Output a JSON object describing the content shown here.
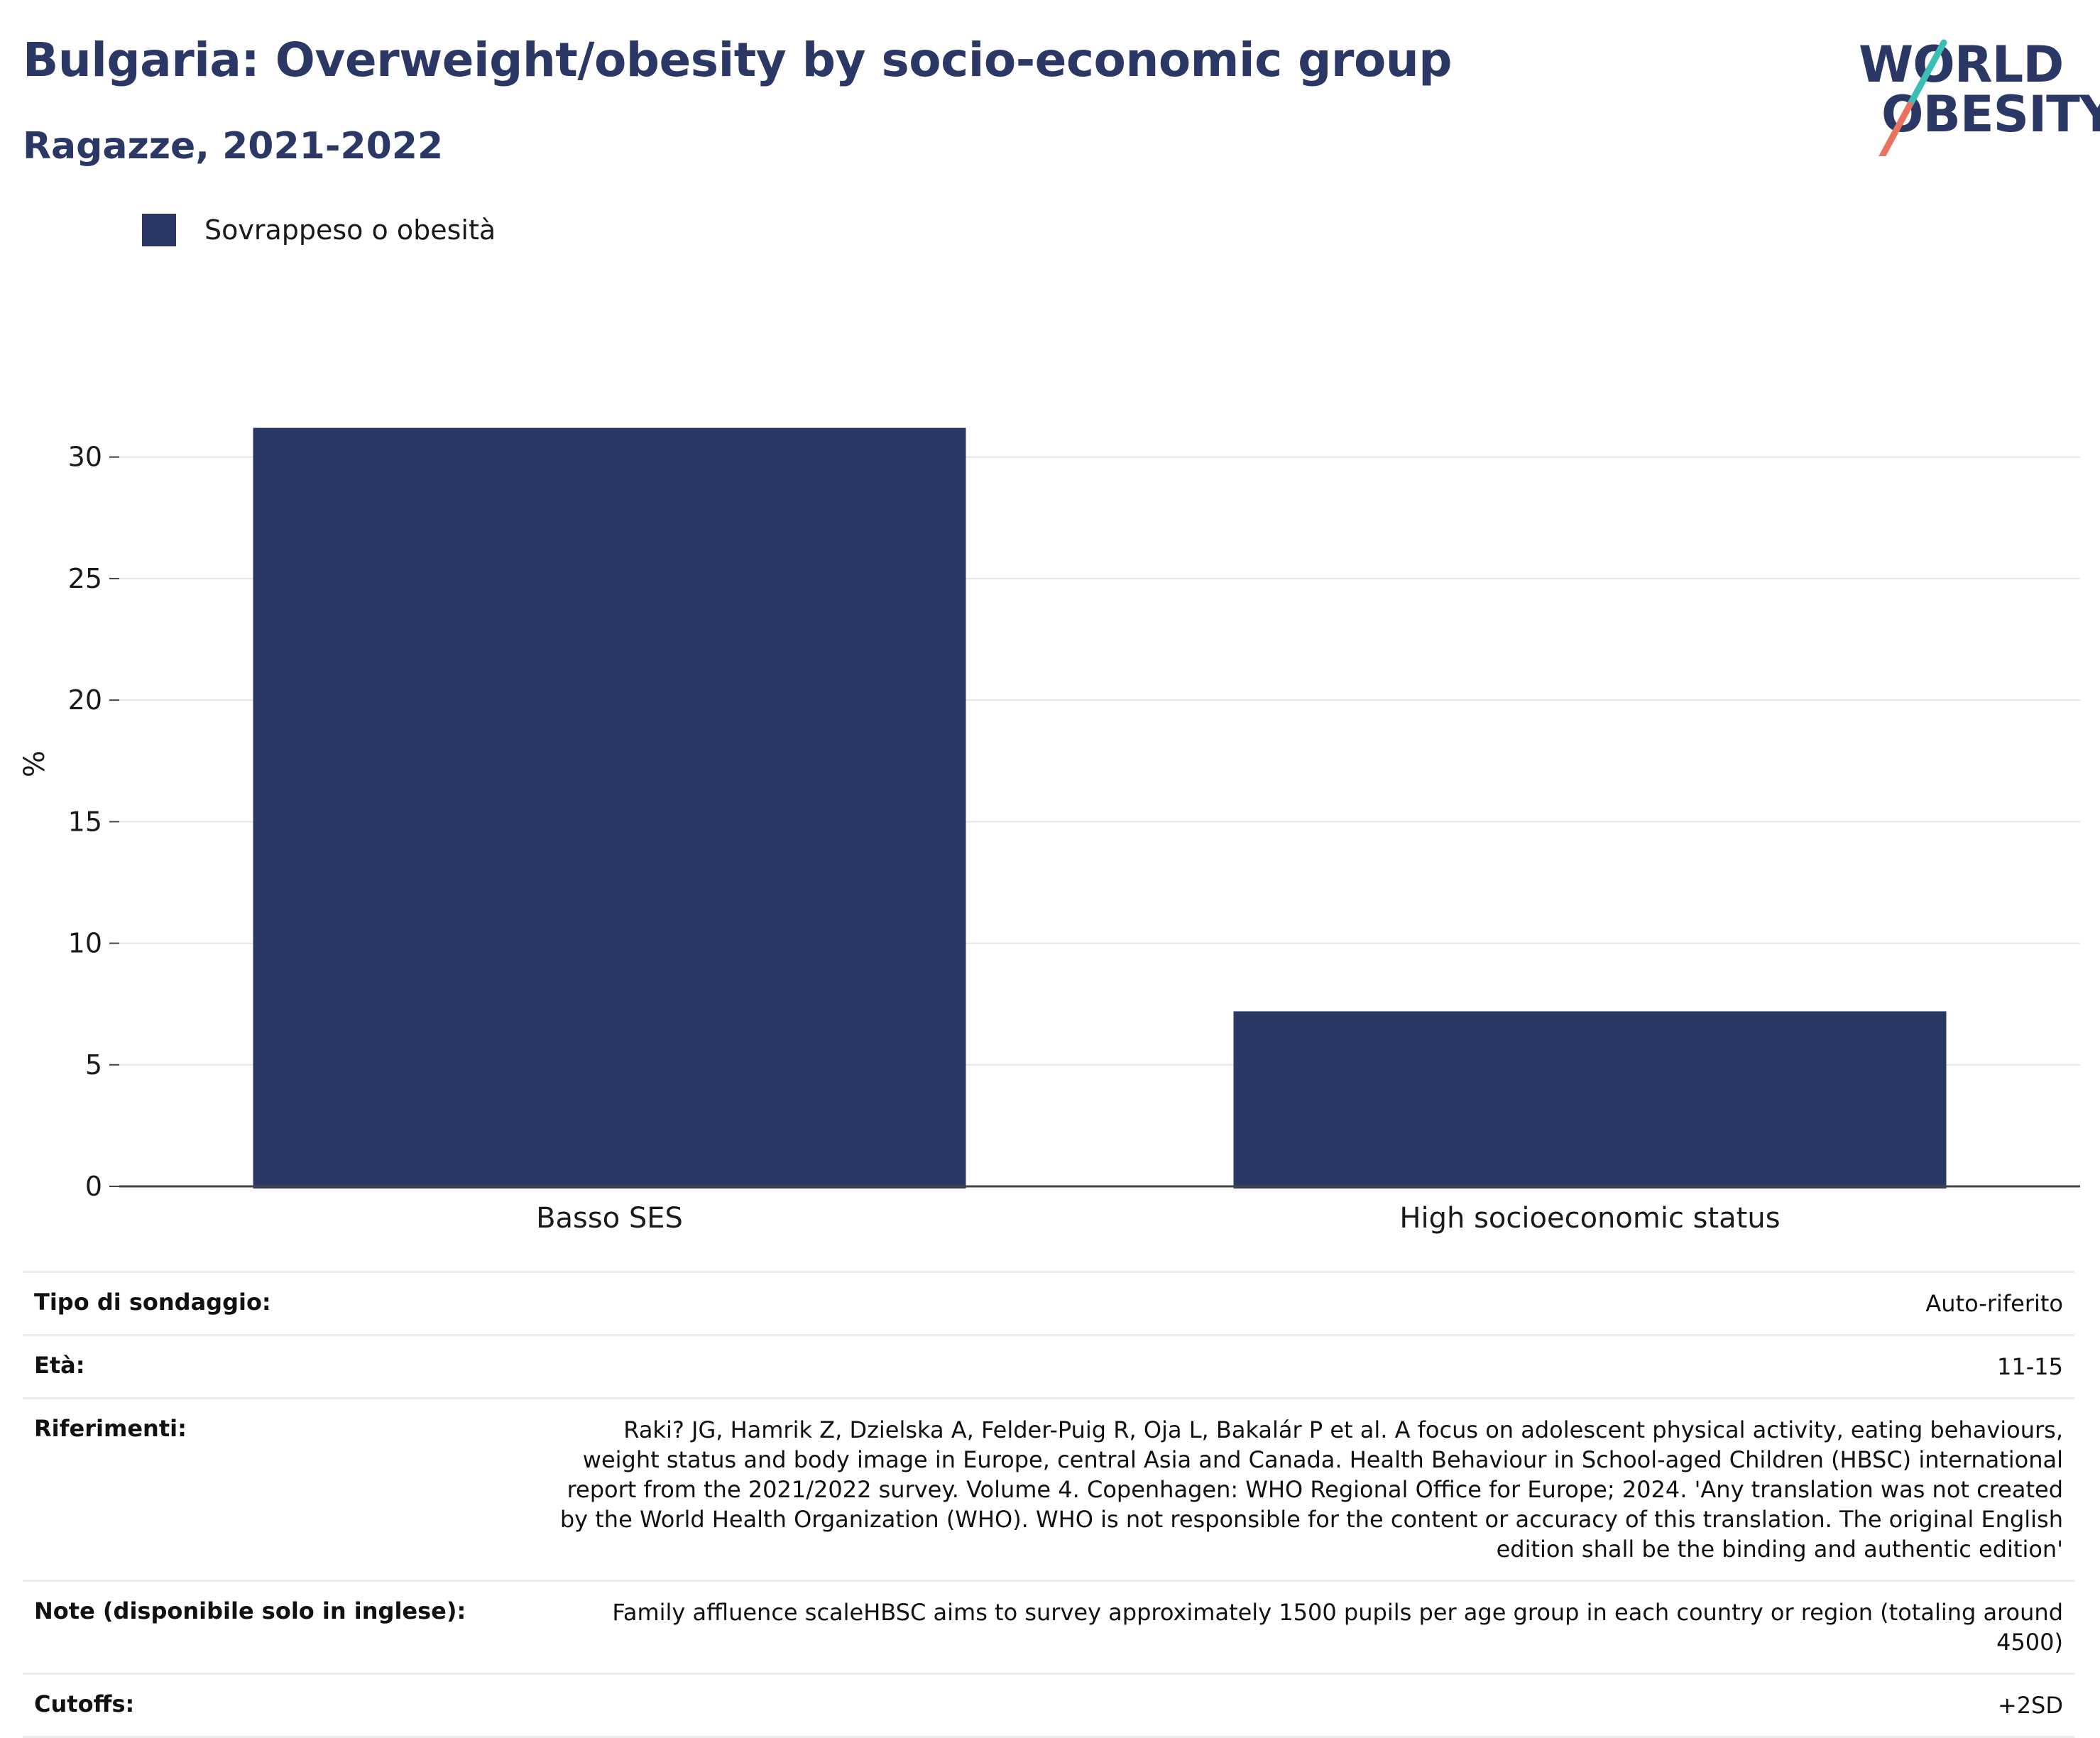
{
  "header": {
    "title": "Bulgaria: Overweight/obesity by socio-economic group",
    "subtitle": "Ragazze, 2021-2022"
  },
  "logo": {
    "line1": "WORLD",
    "line2": "OBESITY",
    "slash_colors": [
      "#3bbfb4",
      "#e9735f"
    ]
  },
  "colors": {
    "bar": "#2b3764",
    "grid": "#e6e6e6",
    "axis": "#444444",
    "title": "#2b3764"
  },
  "chart_data": {
    "type": "bar",
    "title": "Bulgaria: Overweight/obesity by socio-economic group",
    "subtitle": "Ragazze, 2021-2022",
    "categories": [
      "Basso SES",
      "High socioeconomic status"
    ],
    "series": [
      {
        "name": "Sovrappeso o obesità",
        "values": [
          31.2,
          7.2
        ],
        "color": "#2b3764"
      }
    ],
    "xlabel": "",
    "ylabel": "%",
    "ylim": [
      0,
      33
    ],
    "yticks": [
      0,
      5,
      10,
      15,
      20,
      25,
      30
    ],
    "grid": true,
    "legend_position": "top-left"
  },
  "info": [
    {
      "key": "Tipo di sondaggio:",
      "value": "Auto-riferito"
    },
    {
      "key": "Età:",
      "value": "11-15"
    },
    {
      "key": "Riferimenti:",
      "value": "Raki? JG, Hamrik Z, Dzielska A, Felder-Puig R, Oja L, Bakalár P et al. A focus on adolescent physical activity, eating behaviours, weight status and body image in Europe, central Asia and Canada. Health Behaviour in School-aged Children (HBSC) international report from the 2021/2022 survey. Volume 4. Copenhagen: WHO Regional Office for Europe; 2024. 'Any translation was not created by the World Health Organization (WHO). WHO is not responsible for the content or accuracy of this translation. The original English edition shall be the binding and authentic edition'"
    },
    {
      "key": "Note (disponibile solo in inglese):",
      "value": "Family affluence scaleHBSC aims to survey approximately 1500 pupils per age group in each country or region (totaling around 4500)"
    },
    {
      "key": "Cutoffs:",
      "value": "+2SD"
    }
  ]
}
